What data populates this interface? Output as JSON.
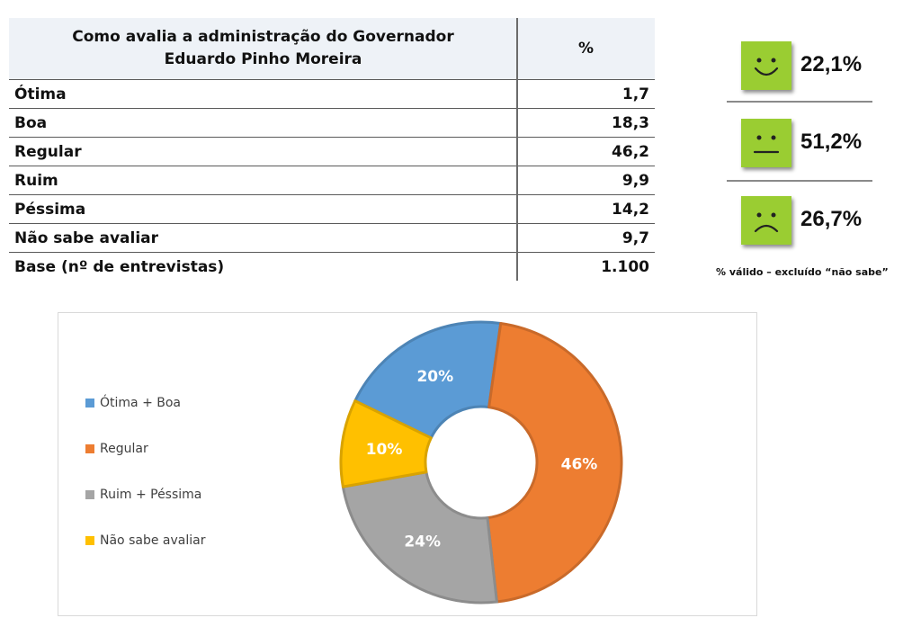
{
  "table": {
    "header_question": "Como avalia a administração  do Governador\nEduardo  Pinho Moreira",
    "header_percent": "%",
    "rows": [
      {
        "label": "Ótima",
        "value": "1,7"
      },
      {
        "label": "Boa",
        "value": "18,3"
      },
      {
        "label": "Regular",
        "value": "46,2"
      },
      {
        "label": "Ruim",
        "value": "9,9"
      },
      {
        "label": "Péssima",
        "value": "14,2"
      },
      {
        "label": "Não sabe avaliar",
        "value": "9,7"
      },
      {
        "label": "Base (nº de entrevistas)",
        "value": "1.100"
      }
    ]
  },
  "faces": {
    "items": [
      {
        "mood": "happy",
        "percent": "22,1%"
      },
      {
        "mood": "neutral",
        "percent": "51,2%"
      },
      {
        "mood": "sad",
        "percent": "26,7%"
      }
    ],
    "note": "% válido – excluído “não sabe”",
    "face_color": "#9acd32"
  },
  "chart_data": {
    "type": "pie",
    "style": "donut",
    "categories": [
      "Ótima + Boa",
      "Regular",
      "Ruim + Péssima",
      "Não sabe avaliar"
    ],
    "values": [
      20,
      46,
      24,
      10
    ],
    "data_labels": [
      "20%",
      "46%",
      "24%",
      "10%"
    ],
    "colors": [
      "#5b9bd5",
      "#ed7d31",
      "#a5a5a5",
      "#ffc000"
    ],
    "legend_position": "left"
  }
}
